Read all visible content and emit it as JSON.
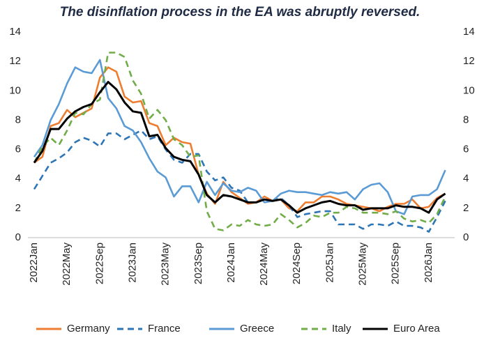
{
  "chart_data": {
    "type": "line",
    "title": "The disinflation process in the EA was abruptly reversed.",
    "categories": [
      "2022Jan",
      null,
      null,
      null,
      "2022May",
      null,
      null,
      null,
      "2022Sep",
      null,
      null,
      null,
      "2023Jan",
      null,
      null,
      null,
      "2023May",
      null,
      null,
      null,
      "2023Sep",
      null,
      null,
      null,
      "2024Jan",
      null,
      null,
      null,
      "2024May",
      null,
      null,
      null,
      "2024Sep",
      null,
      null,
      null,
      "2025Jan",
      null,
      null,
      null,
      "2025May",
      null,
      null,
      null,
      "2025Sep",
      null,
      null,
      null,
      "2026Jan",
      null,
      null
    ],
    "series": [
      {
        "name": "Germany",
        "color": "#ed7d31",
        "dash": false,
        "values": [
          5.1,
          5.5,
          7.6,
          7.8,
          8.7,
          8.2,
          8.5,
          8.8,
          10.9,
          11.6,
          11.3,
          9.6,
          9.2,
          9.3,
          7.8,
          7.6,
          6.3,
          6.8,
          6.5,
          6.4,
          4.3,
          3.0,
          2.3,
          3.8,
          3.1,
          2.7,
          2.3,
          2.4,
          2.8,
          2.5,
          2.6,
          2.0,
          1.8,
          2.4,
          2.4,
          2.8,
          2.8,
          2.6,
          2.3,
          2.2,
          2.1,
          2.0,
          1.8,
          2.1,
          2.3,
          2.3,
          2.6,
          2.0,
          2.1,
          2.7,
          3.0
        ]
      },
      {
        "name": "France",
        "color": "#2e75b6",
        "dash": true,
        "values": [
          3.3,
          4.2,
          5.1,
          5.4,
          5.8,
          6.5,
          6.8,
          6.6,
          6.2,
          7.1,
          7.1,
          6.7,
          7.0,
          7.3,
          6.7,
          6.9,
          6.0,
          5.3,
          5.1,
          5.7,
          5.7,
          4.5,
          3.9,
          4.1,
          3.4,
          3.2,
          2.4,
          2.4,
          2.6,
          2.5,
          2.7,
          2.2,
          1.4,
          1.6,
          1.7,
          1.8,
          1.8,
          0.9,
          0.9,
          0.9,
          0.6,
          0.9,
          0.9,
          0.8,
          1.1,
          0.8,
          0.8,
          0.7,
          0.4,
          1.4,
          2.5
        ]
      },
      {
        "name": "Greece",
        "color": "#5b9bd5",
        "dash": false,
        "values": [
          5.5,
          6.3,
          8.0,
          9.1,
          10.5,
          11.6,
          11.3,
          11.2,
          12.1,
          9.5,
          8.8,
          7.6,
          7.3,
          6.5,
          5.4,
          4.5,
          4.1,
          2.8,
          3.5,
          3.5,
          2.4,
          3.8,
          2.9,
          3.7,
          3.2,
          3.1,
          3.4,
          3.2,
          2.4,
          2.5,
          3.0,
          3.2,
          3.1,
          3.1,
          3.0,
          2.9,
          3.1,
          3.0,
          3.1,
          2.6,
          3.3,
          3.6,
          3.7,
          3.1,
          1.8,
          1.6,
          2.8,
          2.9,
          2.9,
          3.3,
          4.6
        ]
      },
      {
        "name": "Italy",
        "color": "#70ad47",
        "dash": true,
        "values": [
          5.1,
          6.2,
          6.8,
          6.3,
          7.3,
          8.5,
          8.4,
          9.1,
          9.4,
          12.6,
          12.6,
          12.3,
          10.7,
          9.8,
          8.1,
          8.7,
          8.0,
          6.7,
          6.3,
          5.5,
          5.6,
          1.8,
          0.6,
          0.5,
          0.9,
          0.8,
          1.2,
          0.9,
          0.8,
          0.9,
          1.6,
          1.2,
          0.7,
          1.0,
          1.5,
          1.4,
          1.7,
          1.7,
          2.1,
          2.0,
          1.7,
          1.7,
          1.7,
          1.6,
          1.8,
          1.3,
          1.1,
          1.2,
          1.0,
          1.6,
          2.8
        ]
      },
      {
        "name": "Euro Area",
        "color": "#000000",
        "dash": false,
        "values": [
          5.1,
          5.9,
          7.4,
          7.4,
          8.1,
          8.6,
          8.9,
          9.1,
          9.9,
          10.6,
          10.1,
          9.2,
          8.6,
          8.5,
          6.9,
          7.0,
          6.1,
          5.5,
          5.3,
          5.2,
          4.3,
          2.9,
          2.4,
          2.9,
          2.8,
          2.6,
          2.4,
          2.4,
          2.6,
          2.5,
          2.6,
          2.2,
          1.7,
          2.0,
          2.2,
          2.4,
          2.5,
          2.3,
          2.2,
          2.2,
          1.9,
          2.0,
          2.0,
          2.0,
          2.2,
          2.1,
          2.1,
          2.0,
          1.7,
          2.6,
          3.0
        ]
      }
    ],
    "ylim": [
      0,
      14
    ],
    "yticks": [
      0,
      2,
      4,
      6,
      8,
      10,
      12,
      14
    ],
    "y2lim": [
      0,
      14
    ],
    "y2ticks": [
      0,
      2,
      4,
      6,
      8,
      10,
      12,
      14
    ],
    "legend": "bottom",
    "grid": false
  }
}
